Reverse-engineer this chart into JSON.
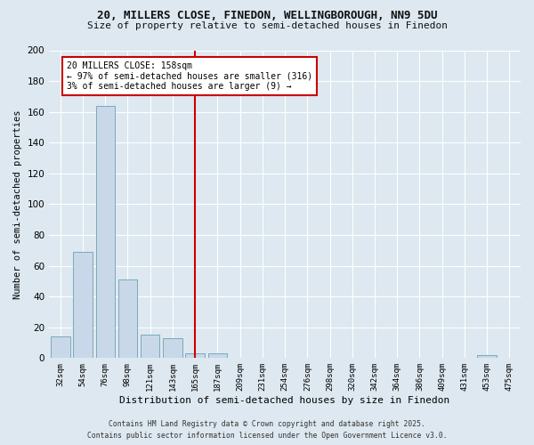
{
  "title_line1": "20, MILLERS CLOSE, FINEDON, WELLINGBOROUGH, NN9 5DU",
  "title_line2": "Size of property relative to semi-detached houses in Finedon",
  "xlabel": "Distribution of semi-detached houses by size in Finedon",
  "ylabel": "Number of semi-detached properties",
  "bin_labels": [
    "32sqm",
    "54sqm",
    "76sqm",
    "98sqm",
    "121sqm",
    "143sqm",
    "165sqm",
    "187sqm",
    "209sqm",
    "231sqm",
    "254sqm",
    "276sqm",
    "298sqm",
    "320sqm",
    "342sqm",
    "364sqm",
    "386sqm",
    "409sqm",
    "431sqm",
    "453sqm",
    "475sqm"
  ],
  "bin_values": [
    14,
    69,
    164,
    51,
    15,
    13,
    3,
    3,
    0,
    0,
    0,
    0,
    0,
    0,
    0,
    0,
    0,
    0,
    0,
    2,
    0
  ],
  "bar_color": "#c8d8e8",
  "bar_edge_color": "#7aaabb",
  "vline_x": 6.0,
  "vline_color": "#cc0000",
  "annotation_title": "20 MILLERS CLOSE: 158sqm",
  "annotation_line1": "← 97% of semi-detached houses are smaller (316)",
  "annotation_line2": "3% of semi-detached houses are larger (9) →",
  "annotation_box_color": "#cc0000",
  "ylim": [
    0,
    200
  ],
  "yticks": [
    0,
    20,
    40,
    60,
    80,
    100,
    120,
    140,
    160,
    180,
    200
  ],
  "footer_line1": "Contains HM Land Registry data © Crown copyright and database right 2025.",
  "footer_line2": "Contains public sector information licensed under the Open Government Licence v3.0.",
  "bg_color": "#dde8f0",
  "plot_bg_color": "#dde8f0",
  "grid_color": "#ffffff"
}
